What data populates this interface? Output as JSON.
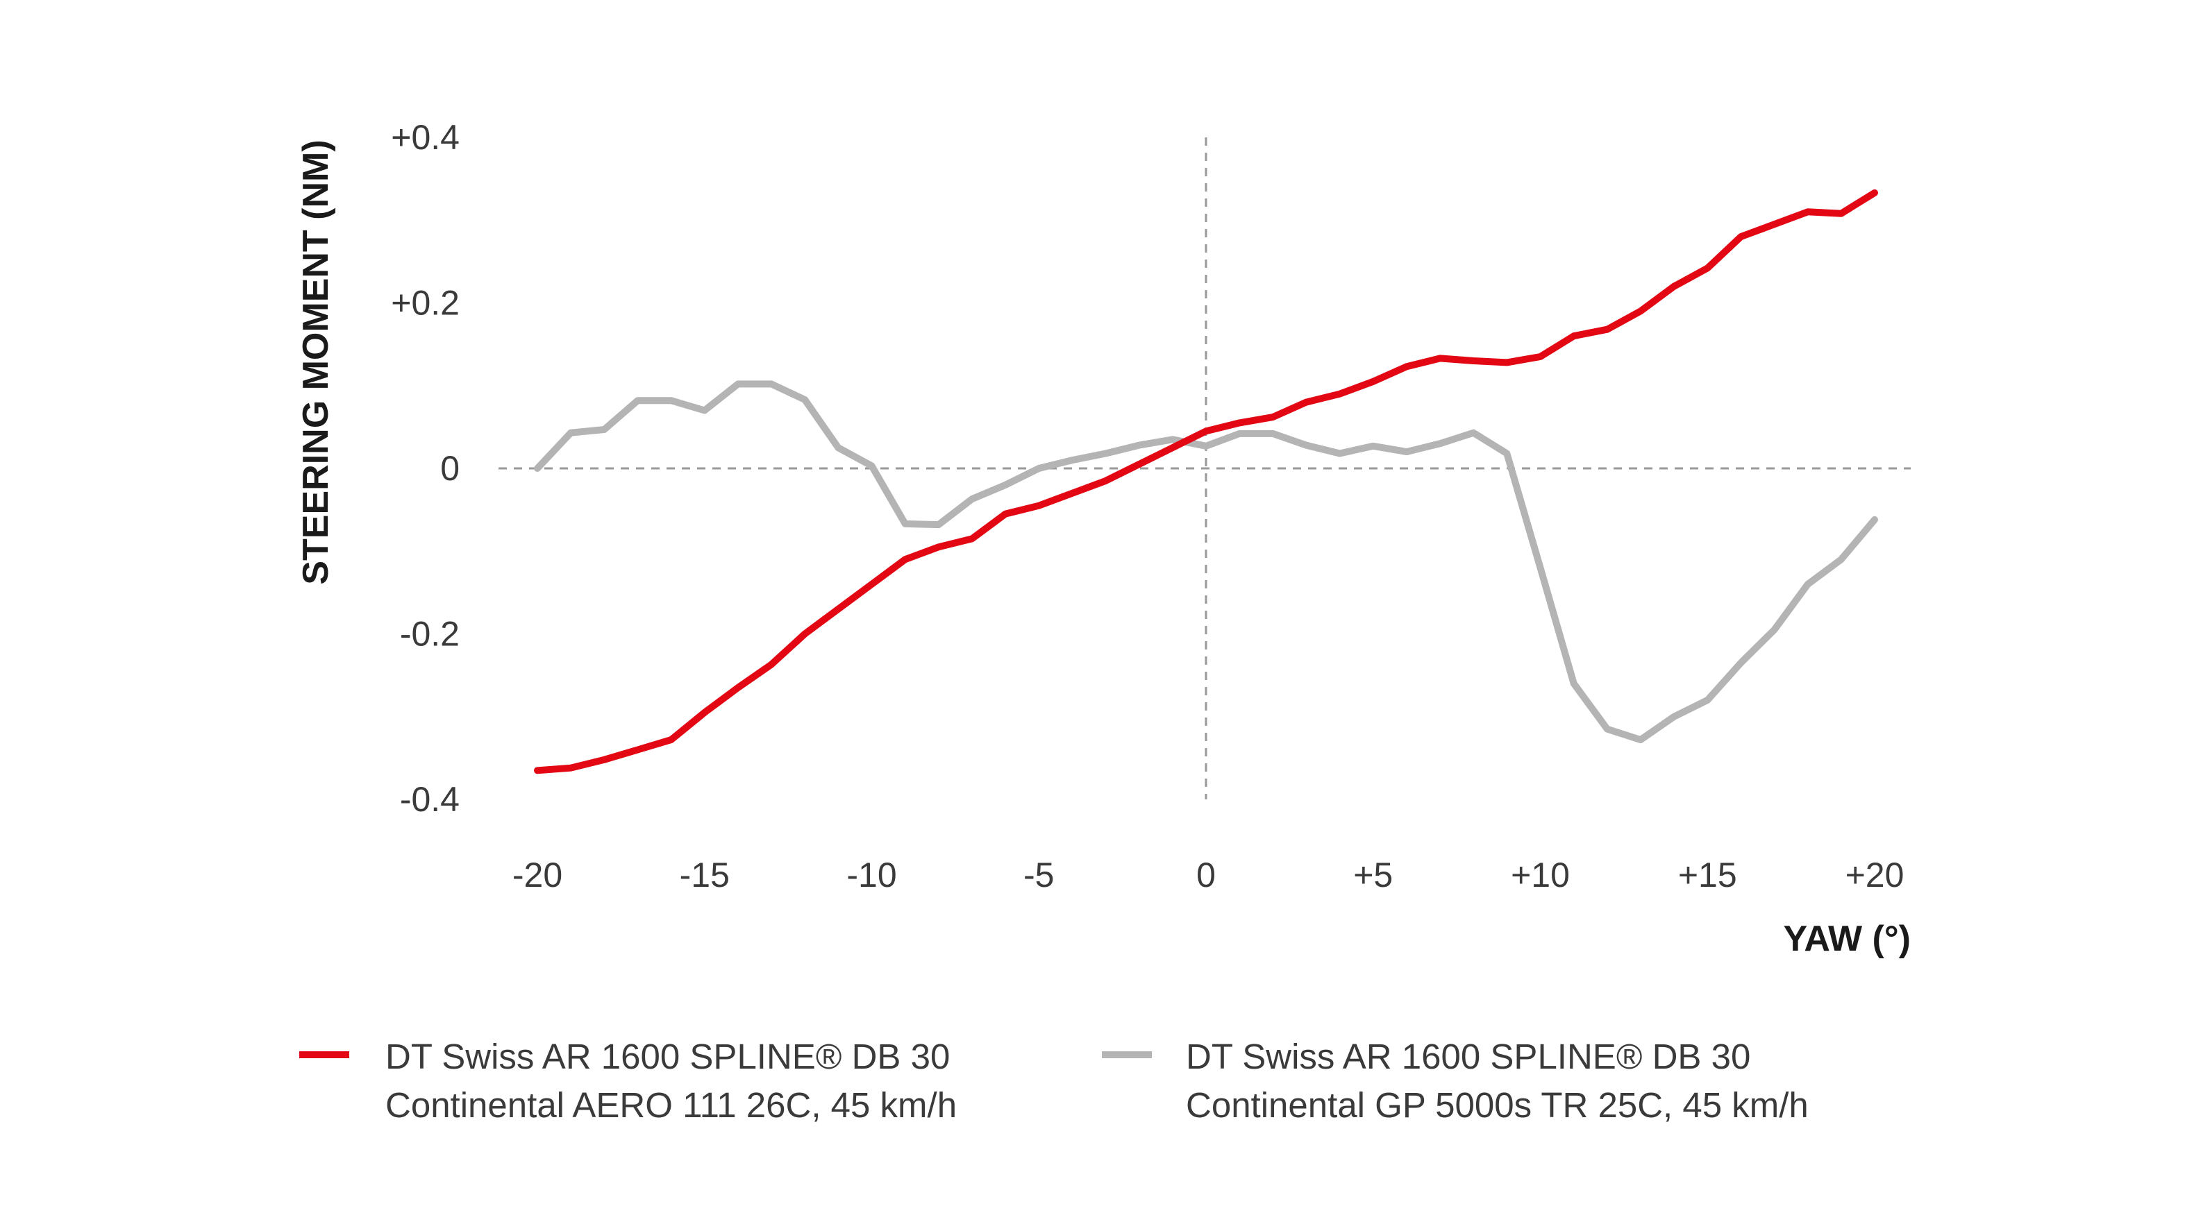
{
  "chart_data": {
    "type": "line",
    "title": "",
    "xlabel": "YAW (°)",
    "ylabel": "STEERING MOMENT (NM)",
    "xlim": [
      -20,
      20
    ],
    "ylim": [
      -0.4,
      0.4
    ],
    "x_ticks": [
      {
        "value": -20,
        "label": "-20"
      },
      {
        "value": -15,
        "label": "-15"
      },
      {
        "value": -10,
        "label": "-10"
      },
      {
        "value": -5,
        "label": "-5"
      },
      {
        "value": 0,
        "label": "0"
      },
      {
        "value": 5,
        "label": "+5"
      },
      {
        "value": 10,
        "label": "+10"
      },
      {
        "value": 15,
        "label": "+15"
      },
      {
        "value": 20,
        "label": "+20"
      }
    ],
    "y_ticks": [
      {
        "value": 0.4,
        "label": "+0.4"
      },
      {
        "value": 0.2,
        "label": "+0.2"
      },
      {
        "value": 0,
        "label": "0"
      },
      {
        "value": -0.2,
        "label": "-0.2"
      },
      {
        "value": -0.4,
        "label": "-0.4"
      }
    ],
    "grid": false,
    "reference_lines": {
      "x": 0,
      "y": 0
    },
    "legend_position": "bottom",
    "x": [
      -20,
      -19,
      -18,
      -17,
      -16,
      -15,
      -14,
      -13,
      -12,
      -11,
      -10,
      -9,
      -8,
      -7,
      -6,
      -5,
      -4,
      -3,
      -2,
      -1,
      0,
      1,
      2,
      3,
      4,
      5,
      6,
      7,
      8,
      9,
      10,
      11,
      12,
      13,
      14,
      15,
      16,
      17,
      18,
      19,
      20
    ],
    "series": [
      {
        "name": "aero",
        "color": "#e30613",
        "legend_line1": "DT Swiss AR 1600 SPLINE® DB 30",
        "legend_line2": "Continental AERO 111 26C, 45 km/h",
        "values": [
          -0.365,
          -0.362,
          -0.352,
          -0.34,
          -0.328,
          -0.295,
          -0.265,
          -0.237,
          -0.2,
          -0.17,
          -0.14,
          -0.11,
          -0.095,
          -0.085,
          -0.055,
          -0.045,
          -0.03,
          -0.015,
          0.005,
          0.025,
          0.045,
          0.055,
          0.062,
          0.08,
          0.09,
          0.105,
          0.123,
          0.133,
          0.13,
          0.128,
          0.135,
          0.16,
          0.168,
          0.19,
          0.22,
          0.242,
          0.28,
          0.295,
          0.31,
          0.308,
          0.333
        ]
      },
      {
        "name": "gp5000",
        "color": "#b4b4b4",
        "legend_line1": "DT Swiss AR 1600 SPLINE® DB 30",
        "legend_line2": "Continental GP 5000s TR 25C, 45 km/h",
        "values": [
          0.0,
          0.043,
          0.047,
          0.082,
          0.082,
          0.07,
          0.102,
          0.102,
          0.083,
          0.025,
          0.003,
          -0.067,
          -0.068,
          -0.037,
          -0.02,
          0.0,
          0.01,
          0.018,
          0.028,
          0.035,
          0.027,
          0.042,
          0.042,
          0.028,
          0.018,
          0.027,
          0.02,
          0.03,
          0.043,
          0.018,
          -0.12,
          -0.26,
          -0.315,
          -0.328,
          -0.3,
          -0.28,
          -0.235,
          -0.195,
          -0.14,
          -0.11,
          -0.062
        ]
      }
    ]
  }
}
